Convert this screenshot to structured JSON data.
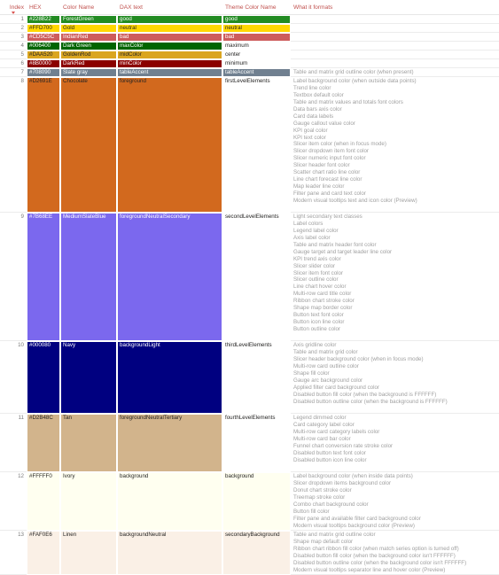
{
  "headers": {
    "index": "Index",
    "hex": "HEX",
    "color_name": "Color Name",
    "dax": "DAX text",
    "theme": "Theme Color Name",
    "formats": "What it formats"
  },
  "rows": [
    {
      "index": "1",
      "hex": "#228B22",
      "name": "ForestGreen",
      "dax": "good",
      "theme": "good",
      "bg": "#228B22",
      "fg": "#ffffff",
      "theme_bg": "#228B22",
      "theme_fg": "#ffffff",
      "lines": 1,
      "desc": []
    },
    {
      "index": "2",
      "hex": "#FFD700",
      "name": "Gold",
      "dax": "neutral",
      "theme": "neutral",
      "bg": "#FFD700",
      "fg": "#252423",
      "theme_bg": "#FFD700",
      "theme_fg": "#252423",
      "lines": 1,
      "desc": []
    },
    {
      "index": "3",
      "hex": "#CD5C5C",
      "name": "IndianRed",
      "dax": "bad",
      "theme": "bad",
      "bg": "#CD5C5C",
      "fg": "#ffffff",
      "theme_bg": "#CD5C5C",
      "theme_fg": "#ffffff",
      "lines": 1,
      "desc": []
    },
    {
      "index": "4",
      "hex": "#006400",
      "name": "Dark Green",
      "dax": "maxColor",
      "theme": "maximum",
      "bg": "#006400",
      "fg": "#ffffff",
      "theme_bg": "#ffffff",
      "theme_fg": "#252423",
      "lines": 1,
      "desc": []
    },
    {
      "index": "5",
      "hex": "#DAA520",
      "name": "GoldenRod",
      "dax": "midColor",
      "theme": "center",
      "bg": "#DAA520",
      "fg": "#252423",
      "theme_bg": "#ffffff",
      "theme_fg": "#252423",
      "lines": 1,
      "desc": []
    },
    {
      "index": "6",
      "hex": "#8B0000",
      "name": "DarkRed",
      "dax": "minColor",
      "theme": "minimum",
      "bg": "#8B0000",
      "fg": "#ffffff",
      "theme_bg": "#ffffff",
      "theme_fg": "#252423",
      "lines": 1,
      "desc": []
    },
    {
      "index": "7",
      "hex": "#708090",
      "name": "Slate gray",
      "dax": "tableAccent",
      "theme": "tableAccent",
      "bg": "#708090",
      "fg": "#ffffff",
      "theme_bg": "#708090",
      "theme_fg": "#ffffff",
      "lines": 1,
      "desc": [
        "Table and matrix grid outline color (when present)"
      ]
    },
    {
      "index": "8",
      "hex": "#D2691E",
      "name": "Chocolate",
      "dax": "foreground",
      "theme": "firstLevelElements",
      "bg": "#D2691E",
      "fg": "#252423",
      "theme_bg": "#ffffff",
      "theme_fg": "#252423",
      "lines": 19,
      "desc": [
        "Label background color (when outside data points)",
        "Trend line color",
        "Textbox default color",
        "Table and matrix values and totals font colors",
        "Data bars axis color",
        "Card data labels",
        "Gauge callout value color",
        "KPI goal color",
        "KPI text color",
        "Slicer item color (when in focus mode)",
        "Slicer dropdown item font color",
        "Slicer numeric input font color",
        "Slicer header font color",
        "Scatter chart ratio line color",
        "Line chart forecast line color",
        "Map leader line color",
        "Filter pane and card text color",
        "Modern visual tooltips text and icon color (Preview)"
      ]
    },
    {
      "index": "9",
      "hex": "#7B68EE",
      "name": "MediumSlateBlue",
      "dax": "foregroundNeutralSecondary",
      "theme": "secondLevelElements",
      "bg": "#7B68EE",
      "fg": "#ffffff",
      "theme_bg": "#ffffff",
      "theme_fg": "#252423",
      "lines": 18,
      "desc": [
        "Light secondary text classes",
        "Label colors",
        "Legend label color",
        "Axis label color",
        "Table and matrix header font color",
        "Gauge target and target leader line color",
        "KPI trend axis color",
        "Slicer slider color",
        "Slicer item font color",
        "Slicer outline color",
        "Line chart hover color",
        "Multi-row card title color",
        "Ribbon chart stroke color",
        "Shape map border color",
        "Button text font color",
        "Button icon line color",
        "Button outline color"
      ]
    },
    {
      "index": "10",
      "hex": "#000080",
      "name": "Navy",
      "dax": "backgroundLight",
      "theme": "thirdLevelElements",
      "bg": "#000080",
      "fg": "#ffffff",
      "theme_bg": "#ffffff",
      "theme_fg": "#252423",
      "lines": 10,
      "desc": [
        "Axis gridline color",
        "Table and matrix grid color",
        "Slicer header background color (when in focus mode)",
        "Multi-row card outline color",
        "Shape fill color",
        "Gauge arc background color",
        "Applied filter card background color",
        "Disabled button fill color (when the background is FFFFFF)",
        "Disabled button outline color (when the background is FFFFFF)"
      ]
    },
    {
      "index": "11",
      "hex": "#D2B48C",
      "name": "Tan",
      "dax": "foregroundNeutralTertiary",
      "theme": "fourthLevelElements",
      "bg": "#D2B48C",
      "fg": "#252423",
      "theme_bg": "#ffffff",
      "theme_fg": "#252423",
      "lines": 8,
      "desc": [
        "Legend dimmed color",
        "Card category label color",
        "Multi-row card category labels color",
        "Multi-row card bar color",
        "Funnel chart conversion rate stroke color",
        "Disabled button text font color",
        "Disabled button icon line color"
      ]
    },
    {
      "index": "12",
      "hex": "#FFFFF0",
      "name": "Ivory",
      "dax": "background",
      "theme": "background",
      "bg": "#FFFFF0",
      "fg": "#252423",
      "theme_bg": "#FFFFF0",
      "theme_fg": "#252423",
      "lines": 8,
      "desc": [
        "Label background color (when inside data points)",
        "Slicer dropdown items background color",
        "Donut chart stroke color",
        "Treemap stroke color",
        "Combo chart background color",
        "Button fill color",
        "Filter pane and available filter card background color",
        "Modern visual tooltips background color (Preview)"
      ]
    },
    {
      "index": "13",
      "hex": "#FAF0E6",
      "name": "Linen",
      "dax": "backgroundNeutral",
      "theme": "secondaryBackground",
      "bg": "#FAF0E6",
      "fg": "#252423",
      "theme_bg": "#FAF0E6",
      "theme_fg": "#252423",
      "lines": 6,
      "desc": [
        "Table and matrix grid outline color",
        "Shape map default color",
        "Ribbon chart ribbon fill color (when match series option is turned off)",
        "Disabled button fill color (when the background color isn't FFFFFF)",
        "Disabled button outline color (when the background color isn't FFFFFF)",
        "Modern visual tooltips separator line and hover color (Preview)"
      ]
    }
  ]
}
